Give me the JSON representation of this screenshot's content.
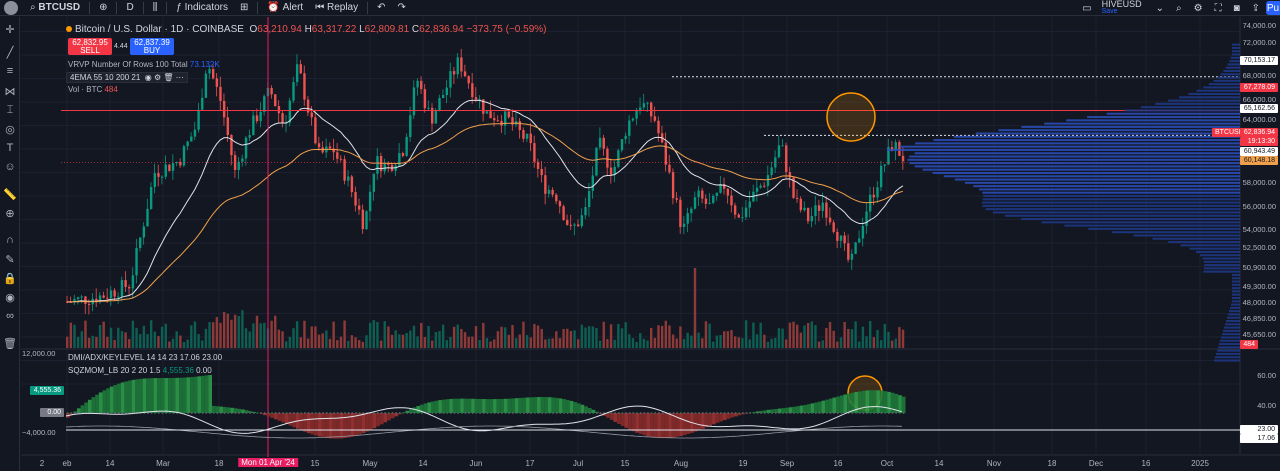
{
  "toolbar": {
    "symbol": "BTCUSD",
    "interval": "D",
    "indicators_label": "Indicators",
    "alert_label": "Alert",
    "replay_label": "Replay",
    "layout_name": "HIVEUSD",
    "save_label": "Save",
    "publish_label": "Pu"
  },
  "legend": {
    "title": "Bitcoin / U.S. Dollar · 1D · COINBASE",
    "ohlc": [
      {
        "k": "O",
        "v": "63,210.94"
      },
      {
        "k": "H",
        "v": "63,317.22"
      },
      {
        "k": "L",
        "v": "62,809.81"
      },
      {
        "k": "C",
        "v": "62,836.94"
      }
    ],
    "change": "−373.75 (−0.59%)",
    "sell_price": "62,832.95",
    "sell_label": "SELL",
    "spread": "4.44",
    "buy_price": "62,837.39",
    "buy_label": "BUY"
  },
  "indicators": {
    "vrvp_name": "VRVP",
    "vrvp_params": "Number Of Rows 100 Total",
    "vrvp_value": "73.132K",
    "ema_name": "4EMA",
    "ema_params": "55 10 200 21",
    "vol_name": "Vol · BTC",
    "vol_value": "484",
    "dmi_name": "DMI/ADX/KEYLEVEL",
    "dmi_params": "14 14 23",
    "dmi_v1": "17.06",
    "dmi_v2": "23.00",
    "sqz_name": "SQZMOM_LB",
    "sqz_params": "20 2 20 1.5",
    "sqz_v1": "4,555.36",
    "sqz_v2": "0.00"
  },
  "price_axis": [
    "74,000.00",
    "72,000.00",
    "70,153.17",
    "68,000.00",
    "67,278.09",
    "66,000.00",
    "65,162.56",
    "64,000.00",
    "BTCUSD",
    "62,836.94",
    "19:13:30",
    "60,943.49",
    "60,148.18",
    "58,000.00",
    "56,000.00",
    "54,000.00",
    "52,500.00",
    "50,900.00",
    "49,300.00",
    "48,000.00",
    "46,850.00",
    "45,650.00",
    "484"
  ],
  "price_levels": {
    "p74": "74,000.00",
    "p72": "72,000.00",
    "p70": "70,153.17",
    "p68": "68,000.00",
    "p67": "67,278.09",
    "p66": "66,000.00",
    "p65": "65,162.56",
    "p64": "64,000.00",
    "sym": "BTCUSD",
    "last": "62,836.94",
    "countdown": "19:13:30",
    "p60a": "60,943.49",
    "p60b": "60,148.18",
    "p58": "58,000.00",
    "p56": "56,000.00",
    "p54": "54,000.00",
    "p52": "52,500.00",
    "p50": "50,900.00",
    "p49": "49,300.00",
    "p48": "48,000.00",
    "p46": "46,850.00",
    "p45": "45,650.00",
    "vol": "484"
  },
  "sub_axis": {
    "left_top": "12,000.00",
    "left_mid": "4,555.36",
    "left_zero": "0.00",
    "left_low": "−4,000.00",
    "r60": "60.00",
    "r40": "40.00",
    "r23": "23.00",
    "r17": "17.06"
  },
  "date_axis": {
    "labels": [
      "eb",
      "14",
      "Mar",
      "18",
      "15",
      "May",
      "14",
      "Jun",
      "17",
      "Jul",
      "15",
      "Aug",
      "19",
      "Sep",
      "16",
      "Oct",
      "14",
      "Nov",
      "18",
      "Dec",
      "16",
      "2025",
      "2"
    ],
    "highlight": "Mon 01 Apr '24"
  },
  "colors": {
    "bg": "#131722",
    "up": "#089981",
    "down": "#ef5350",
    "accent": "#2962ff",
    "ema_white": "#e0e3eb",
    "ema_orange": "#f0a04b",
    "highlight": "#e91e63",
    "circle": "#ff9800"
  }
}
